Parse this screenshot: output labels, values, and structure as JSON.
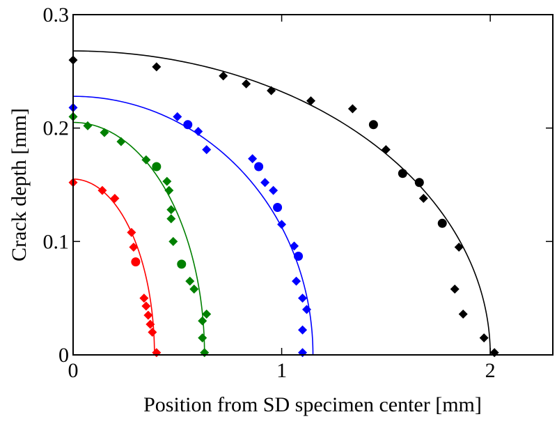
{
  "chart_data": {
    "type": "scatter",
    "title": "",
    "xlabel": "Position from SD specimen center [mm]",
    "ylabel": "Crack depth [mm]",
    "xlim": [
      0,
      2.3
    ],
    "ylim": [
      0,
      0.3
    ],
    "x_ticks": [
      "0",
      "1",
      "2"
    ],
    "y_ticks": [
      "0",
      "0.1",
      "0.2",
      "0.3"
    ],
    "x_tick_values": [
      0,
      1,
      2
    ],
    "y_tick_values": [
      0,
      0.1,
      0.2,
      0.3
    ],
    "grid": false,
    "legend": false,
    "series": [
      {
        "color": "#ff0000",
        "fit": {
          "a": 0.39,
          "b": 0.155
        },
        "points": [
          {
            "x": 0.0,
            "y": 0.152,
            "shape": "diamond"
          },
          {
            "x": 0.14,
            "y": 0.145,
            "shape": "diamond"
          },
          {
            "x": 0.2,
            "y": 0.138,
            "shape": "diamond"
          },
          {
            "x": 0.28,
            "y": 0.108,
            "shape": "diamond"
          },
          {
            "x": 0.29,
            "y": 0.095,
            "shape": "diamond"
          },
          {
            "x": 0.3,
            "y": 0.082,
            "shape": "circle"
          },
          {
            "x": 0.34,
            "y": 0.05,
            "shape": "diamond"
          },
          {
            "x": 0.35,
            "y": 0.043,
            "shape": "diamond"
          },
          {
            "x": 0.36,
            "y": 0.035,
            "shape": "diamond"
          },
          {
            "x": 0.37,
            "y": 0.027,
            "shape": "diamond"
          },
          {
            "x": 0.38,
            "y": 0.02,
            "shape": "diamond"
          },
          {
            "x": 0.4,
            "y": 0.002,
            "shape": "diamond"
          }
        ]
      },
      {
        "color": "#008000",
        "fit": {
          "a": 0.63,
          "b": 0.205
        },
        "points": [
          {
            "x": 0.0,
            "y": 0.21,
            "shape": "diamond"
          },
          {
            "x": 0.07,
            "y": 0.202,
            "shape": "diamond"
          },
          {
            "x": 0.15,
            "y": 0.196,
            "shape": "diamond"
          },
          {
            "x": 0.23,
            "y": 0.188,
            "shape": "diamond"
          },
          {
            "x": 0.35,
            "y": 0.172,
            "shape": "diamond"
          },
          {
            "x": 0.4,
            "y": 0.166,
            "shape": "circle"
          },
          {
            "x": 0.45,
            "y": 0.153,
            "shape": "diamond"
          },
          {
            "x": 0.46,
            "y": 0.145,
            "shape": "diamond"
          },
          {
            "x": 0.47,
            "y": 0.128,
            "shape": "diamond"
          },
          {
            "x": 0.47,
            "y": 0.12,
            "shape": "diamond"
          },
          {
            "x": 0.48,
            "y": 0.1,
            "shape": "diamond"
          },
          {
            "x": 0.52,
            "y": 0.08,
            "shape": "circle"
          },
          {
            "x": 0.56,
            "y": 0.065,
            "shape": "diamond"
          },
          {
            "x": 0.58,
            "y": 0.058,
            "shape": "diamond"
          },
          {
            "x": 0.62,
            "y": 0.03,
            "shape": "diamond"
          },
          {
            "x": 0.64,
            "y": 0.036,
            "shape": "diamond"
          },
          {
            "x": 0.62,
            "y": 0.015,
            "shape": "diamond"
          },
          {
            "x": 0.63,
            "y": 0.002,
            "shape": "diamond"
          }
        ]
      },
      {
        "color": "#0000ff",
        "fit": {
          "a": 1.15,
          "b": 0.228
        },
        "points": [
          {
            "x": 0.0,
            "y": 0.218,
            "shape": "diamond"
          },
          {
            "x": 0.5,
            "y": 0.21,
            "shape": "diamond"
          },
          {
            "x": 0.55,
            "y": 0.203,
            "shape": "circle"
          },
          {
            "x": 0.6,
            "y": 0.197,
            "shape": "diamond"
          },
          {
            "x": 0.64,
            "y": 0.181,
            "shape": "diamond"
          },
          {
            "x": 0.86,
            "y": 0.173,
            "shape": "diamond"
          },
          {
            "x": 0.89,
            "y": 0.166,
            "shape": "circle"
          },
          {
            "x": 0.92,
            "y": 0.152,
            "shape": "diamond"
          },
          {
            "x": 0.96,
            "y": 0.145,
            "shape": "diamond"
          },
          {
            "x": 0.98,
            "y": 0.13,
            "shape": "circle"
          },
          {
            "x": 1.0,
            "y": 0.115,
            "shape": "diamond"
          },
          {
            "x": 1.06,
            "y": 0.096,
            "shape": "diamond"
          },
          {
            "x": 1.08,
            "y": 0.087,
            "shape": "circle"
          },
          {
            "x": 1.07,
            "y": 0.065,
            "shape": "diamond"
          },
          {
            "x": 1.1,
            "y": 0.05,
            "shape": "diamond"
          },
          {
            "x": 1.12,
            "y": 0.04,
            "shape": "diamond"
          },
          {
            "x": 1.1,
            "y": 0.022,
            "shape": "diamond"
          },
          {
            "x": 1.1,
            "y": 0.002,
            "shape": "diamond"
          }
        ]
      },
      {
        "color": "#000000",
        "fit": {
          "a": 2.0,
          "b": 0.268
        },
        "points": [
          {
            "x": 0.0,
            "y": 0.26,
            "shape": "diamond"
          },
          {
            "x": 0.4,
            "y": 0.254,
            "shape": "diamond"
          },
          {
            "x": 0.72,
            "y": 0.246,
            "shape": "diamond"
          },
          {
            "x": 0.83,
            "y": 0.239,
            "shape": "diamond"
          },
          {
            "x": 0.95,
            "y": 0.233,
            "shape": "diamond"
          },
          {
            "x": 1.14,
            "y": 0.224,
            "shape": "diamond"
          },
          {
            "x": 1.34,
            "y": 0.217,
            "shape": "diamond"
          },
          {
            "x": 1.44,
            "y": 0.203,
            "shape": "circle"
          },
          {
            "x": 1.5,
            "y": 0.181,
            "shape": "diamond"
          },
          {
            "x": 1.58,
            "y": 0.16,
            "shape": "circle"
          },
          {
            "x": 1.66,
            "y": 0.152,
            "shape": "circle"
          },
          {
            "x": 1.68,
            "y": 0.138,
            "shape": "diamond"
          },
          {
            "x": 1.77,
            "y": 0.116,
            "shape": "circle"
          },
          {
            "x": 1.85,
            "y": 0.095,
            "shape": "diamond"
          },
          {
            "x": 1.83,
            "y": 0.058,
            "shape": "diamond"
          },
          {
            "x": 1.87,
            "y": 0.036,
            "shape": "diamond"
          },
          {
            "x": 1.97,
            "y": 0.015,
            "shape": "diamond"
          },
          {
            "x": 2.02,
            "y": 0.002,
            "shape": "diamond"
          }
        ]
      }
    ]
  }
}
